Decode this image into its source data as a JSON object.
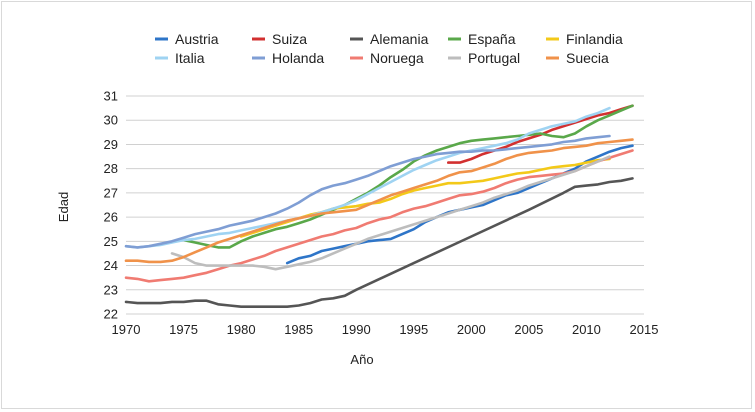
{
  "chart_data": {
    "type": "line",
    "title": "",
    "xlabel": "Año",
    "ylabel": "Edad",
    "xlim": [
      1970,
      2015
    ],
    "ylim": [
      22,
      31
    ],
    "x_ticks": [
      1970,
      1975,
      1980,
      1985,
      1990,
      1995,
      2000,
      2005,
      2010,
      2015
    ],
    "y_ticks": [
      22,
      23,
      24,
      25,
      26,
      27,
      28,
      29,
      30,
      31
    ],
    "grid": "horizontal",
    "legend_position": "top",
    "series": [
      {
        "name": "Austria",
        "color": "#2e75c8",
        "x": [
          1984,
          1985,
          1986,
          1987,
          1988,
          1989,
          1990,
          1991,
          1992,
          1993,
          1994,
          1995,
          1996,
          1997,
          1998,
          1999,
          2000,
          2001,
          2002,
          2003,
          2004,
          2005,
          2006,
          2007,
          2008,
          2009,
          2010,
          2011,
          2012,
          2013,
          2014
        ],
        "y": [
          24.1,
          24.3,
          24.4,
          24.6,
          24.7,
          24.8,
          24.9,
          25.0,
          25.05,
          25.1,
          25.3,
          25.5,
          25.8,
          26.0,
          26.2,
          26.3,
          26.4,
          26.5,
          26.7,
          26.9,
          27.0,
          27.2,
          27.4,
          27.6,
          27.8,
          28.0,
          28.3,
          28.5,
          28.7,
          28.85,
          28.95
        ]
      },
      {
        "name": "Suiza",
        "color": "#d23030",
        "x": [
          1998,
          1999,
          2000,
          2001,
          2002,
          2003,
          2004,
          2005,
          2006,
          2007,
          2008,
          2009,
          2010,
          2011,
          2012,
          2013,
          2014
        ],
        "y": [
          28.25,
          28.25,
          28.4,
          28.6,
          28.75,
          28.9,
          29.1,
          29.25,
          29.4,
          29.6,
          29.75,
          29.9,
          30.05,
          30.2,
          30.3,
          30.45,
          30.6
        ]
      },
      {
        "name": "Alemania",
        "color": "#555555",
        "x": [
          1970,
          1971,
          1972,
          1973,
          1974,
          1975,
          1976,
          1977,
          1978,
          1979,
          1980,
          1981,
          1982,
          1983,
          1984,
          1985,
          1986,
          1987,
          1988,
          1989,
          1990,
          1995,
          2000,
          2005,
          2008,
          2009,
          2010,
          2011,
          2012,
          2013,
          2014
        ],
        "y": [
          22.5,
          22.45,
          22.45,
          22.45,
          22.5,
          22.5,
          22.55,
          22.55,
          22.4,
          22.35,
          22.3,
          22.3,
          22.3,
          22.3,
          22.3,
          22.35,
          22.45,
          22.6,
          22.65,
          22.75,
          23.0,
          24.1,
          25.2,
          26.3,
          27.0,
          27.25,
          27.3,
          27.35,
          27.45,
          27.5,
          27.6
        ]
      },
      {
        "name": "España",
        "color": "#5aa84a",
        "x": [
          1975,
          1976,
          1977,
          1978,
          1979,
          1980,
          1981,
          1982,
          1983,
          1984,
          1985,
          1986,
          1987,
          1988,
          1989,
          1990,
          1991,
          1992,
          1993,
          1994,
          1995,
          1996,
          1997,
          1998,
          1999,
          2000,
          2001,
          2002,
          2003,
          2004,
          2005,
          2006,
          2007,
          2008,
          2009,
          2010,
          2011,
          2012,
          2013,
          2014
        ],
        "y": [
          25.05,
          24.95,
          24.85,
          24.75,
          24.75,
          25.0,
          25.2,
          25.35,
          25.5,
          25.6,
          25.75,
          25.9,
          26.1,
          26.3,
          26.5,
          26.75,
          27.0,
          27.3,
          27.65,
          27.95,
          28.3,
          28.55,
          28.75,
          28.9,
          29.05,
          29.15,
          29.2,
          29.25,
          29.3,
          29.35,
          29.4,
          29.45,
          29.35,
          29.3,
          29.45,
          29.75,
          30.0,
          30.2,
          30.4,
          30.6
        ]
      },
      {
        "name": "Finlandia",
        "color": "#f3c919",
        "x": [
          1980,
          1981,
          1982,
          1983,
          1984,
          1985,
          1986,
          1987,
          1988,
          1989,
          1990,
          1991,
          1992,
          1993,
          1994,
          1995,
          1996,
          1997,
          1998,
          1999,
          2000,
          2001,
          2002,
          2003,
          2004,
          2005,
          2006,
          2007,
          2008,
          2009,
          2010,
          2011,
          2012
        ],
        "y": [
          25.2,
          25.35,
          25.5,
          25.65,
          25.8,
          25.95,
          26.1,
          26.2,
          26.35,
          26.4,
          26.45,
          26.55,
          26.6,
          26.75,
          26.95,
          27.1,
          27.2,
          27.3,
          27.4,
          27.4,
          27.45,
          27.5,
          27.6,
          27.7,
          27.8,
          27.85,
          27.95,
          28.05,
          28.1,
          28.15,
          28.25,
          28.35,
          28.4
        ]
      },
      {
        "name": "Italia",
        "color": "#9fd3f2",
        "x": [
          1970,
          1971,
          1972,
          1973,
          1974,
          1975,
          1976,
          1977,
          1978,
          1979,
          1980,
          1981,
          1982,
          1983,
          1984,
          1985,
          1986,
          1987,
          1988,
          1989,
          1990,
          1991,
          1992,
          1993,
          1994,
          1995,
          1996,
          1997,
          1998,
          1999,
          2000,
          2001,
          2002,
          2003,
          2004,
          2005,
          2006,
          2007,
          2008,
          2009,
          2010,
          2011,
          2012
        ],
        "y": [
          24.8,
          24.75,
          24.8,
          24.85,
          24.95,
          25.05,
          25.1,
          25.2,
          25.3,
          25.35,
          25.45,
          25.55,
          25.65,
          25.75,
          25.85,
          25.95,
          26.05,
          26.2,
          26.35,
          26.5,
          26.7,
          26.95,
          27.2,
          27.45,
          27.7,
          27.95,
          28.15,
          28.35,
          28.5,
          28.65,
          28.75,
          28.85,
          28.95,
          29.05,
          29.2,
          29.45,
          29.6,
          29.75,
          29.85,
          29.95,
          30.15,
          30.3,
          30.5
        ]
      },
      {
        "name": "Holanda",
        "color": "#7f9ed4",
        "x": [
          1970,
          1971,
          1972,
          1973,
          1974,
          1975,
          1976,
          1977,
          1978,
          1979,
          1980,
          1981,
          1982,
          1983,
          1984,
          1985,
          1986,
          1987,
          1988,
          1989,
          1990,
          1991,
          1992,
          1993,
          1994,
          1995,
          1996,
          1997,
          1998,
          1999,
          2000,
          2001,
          2002,
          2003,
          2004,
          2005,
          2006,
          2007,
          2008,
          2009,
          2010,
          2011,
          2012
        ],
        "y": [
          24.8,
          24.75,
          24.8,
          24.9,
          25.0,
          25.15,
          25.3,
          25.4,
          25.5,
          25.65,
          25.75,
          25.85,
          26.0,
          26.15,
          26.35,
          26.6,
          26.9,
          27.15,
          27.3,
          27.4,
          27.55,
          27.7,
          27.9,
          28.1,
          28.25,
          28.4,
          28.5,
          28.6,
          28.65,
          28.7,
          28.7,
          28.75,
          28.75,
          28.8,
          28.85,
          28.9,
          28.95,
          29.0,
          29.1,
          29.15,
          29.25,
          29.3,
          29.35
        ]
      },
      {
        "name": "Noruega",
        "color": "#f07b72",
        "x": [
          1970,
          1971,
          1972,
          1973,
          1974,
          1975,
          1976,
          1977,
          1978,
          1979,
          1980,
          1981,
          1982,
          1983,
          1984,
          1985,
          1986,
          1987,
          1988,
          1989,
          1990,
          1991,
          1992,
          1993,
          1994,
          1995,
          1996,
          1997,
          1998,
          1999,
          2000,
          2001,
          2002,
          2003,
          2004,
          2005,
          2006,
          2007,
          2008,
          2009,
          2010,
          2011,
          2012,
          2013,
          2014
        ],
        "y": [
          23.5,
          23.45,
          23.35,
          23.4,
          23.45,
          23.5,
          23.6,
          23.7,
          23.85,
          24.0,
          24.1,
          24.25,
          24.4,
          24.6,
          24.75,
          24.9,
          25.05,
          25.2,
          25.3,
          25.45,
          25.55,
          25.75,
          25.9,
          26.0,
          26.2,
          26.35,
          26.45,
          26.6,
          26.75,
          26.9,
          26.95,
          27.05,
          27.2,
          27.4,
          27.55,
          27.65,
          27.7,
          27.75,
          27.8,
          27.9,
          28.1,
          28.3,
          28.45,
          28.6,
          28.75
        ]
      },
      {
        "name": "Portugal",
        "color": "#bdbdbd",
        "x": [
          1974,
          1975,
          1976,
          1977,
          1978,
          1979,
          1980,
          1981,
          1982,
          1983,
          1984,
          1985,
          1986,
          1987,
          1988,
          1989,
          1990,
          1991,
          1992,
          1993,
          1994,
          1995,
          1996,
          1997,
          1998,
          1999,
          2000,
          2001,
          2002,
          2003,
          2004,
          2005,
          2006,
          2007,
          2008,
          2009,
          2010,
          2011,
          2012
        ],
        "y": [
          24.5,
          24.35,
          24.1,
          24.0,
          24.0,
          24.0,
          24.0,
          24.0,
          23.95,
          23.85,
          23.95,
          24.05,
          24.15,
          24.3,
          24.5,
          24.7,
          24.9,
          25.1,
          25.25,
          25.4,
          25.55,
          25.7,
          25.85,
          26.0,
          26.15,
          26.3,
          26.45,
          26.6,
          26.8,
          26.95,
          27.1,
          27.3,
          27.45,
          27.6,
          27.75,
          27.9,
          28.1,
          28.3,
          28.5
        ]
      },
      {
        "name": "Suecia",
        "color": "#f0924a",
        "x": [
          1970,
          1971,
          1972,
          1973,
          1974,
          1975,
          1976,
          1977,
          1978,
          1979,
          1980,
          1981,
          1982,
          1983,
          1984,
          1985,
          1986,
          1987,
          1988,
          1989,
          1990,
          1991,
          1992,
          1993,
          1994,
          1995,
          1996,
          1997,
          1998,
          1999,
          2000,
          2001,
          2002,
          2003,
          2004,
          2005,
          2006,
          2007,
          2008,
          2009,
          2010,
          2011,
          2012,
          2013,
          2014
        ],
        "y": [
          24.2,
          24.2,
          24.15,
          24.15,
          24.2,
          24.35,
          24.55,
          24.75,
          24.95,
          25.1,
          25.25,
          25.4,
          25.55,
          25.7,
          25.85,
          25.95,
          26.05,
          26.15,
          26.2,
          26.25,
          26.3,
          26.5,
          26.7,
          26.9,
          27.05,
          27.2,
          27.35,
          27.5,
          27.7,
          27.85,
          27.9,
          28.05,
          28.2,
          28.4,
          28.55,
          28.65,
          28.7,
          28.75,
          28.85,
          28.9,
          28.95,
          29.05,
          29.1,
          29.15,
          29.2
        ]
      }
    ]
  }
}
